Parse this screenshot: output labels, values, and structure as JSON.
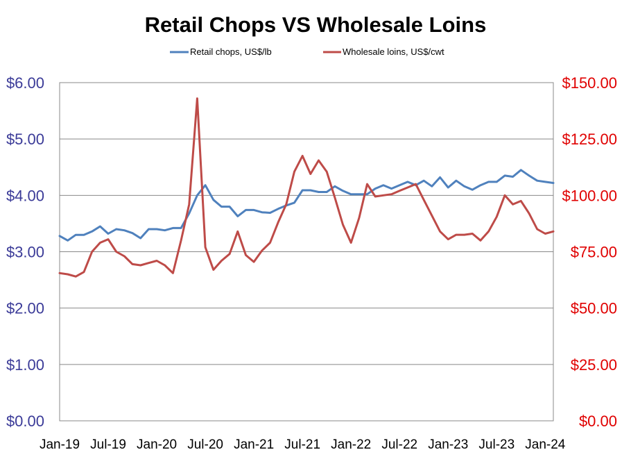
{
  "chart_data": {
    "type": "line",
    "title": "Retail Chops VS Wholesale Loins",
    "legend_position": "top-center",
    "grid": true,
    "x_tick_labels": [
      "Jan-19",
      "Jul-19",
      "Jan-20",
      "Jul-20",
      "Jan-21",
      "Jul-21",
      "Jan-22",
      "Jul-22",
      "Jan-23",
      "Jul-23",
      "Jan-24"
    ],
    "x": [
      "2019-01",
      "2019-02",
      "2019-03",
      "2019-04",
      "2019-05",
      "2019-06",
      "2019-07",
      "2019-08",
      "2019-09",
      "2019-10",
      "2019-11",
      "2019-12",
      "2020-01",
      "2020-02",
      "2020-03",
      "2020-04",
      "2020-05",
      "2020-06",
      "2020-07",
      "2020-08",
      "2020-09",
      "2020-10",
      "2020-11",
      "2020-12",
      "2021-01",
      "2021-02",
      "2021-03",
      "2021-04",
      "2021-05",
      "2021-06",
      "2021-07",
      "2021-08",
      "2021-09",
      "2021-10",
      "2021-11",
      "2021-12",
      "2022-01",
      "2022-02",
      "2022-03",
      "2022-04",
      "2022-05",
      "2022-06",
      "2022-07",
      "2022-08",
      "2022-09",
      "2022-10",
      "2022-11",
      "2022-12",
      "2023-01",
      "2023-02",
      "2023-03",
      "2023-04",
      "2023-05",
      "2023-06",
      "2023-07",
      "2023-08",
      "2023-09",
      "2023-10",
      "2023-11",
      "2023-12",
      "2024-01",
      "2024-02"
    ],
    "left_axis": {
      "ylim": [
        0,
        6
      ],
      "tick_labels": [
        "$0.00",
        "$1.00",
        "$2.00",
        "$3.00",
        "$4.00",
        "$5.00",
        "$6.00"
      ],
      "color": "#3b3b98"
    },
    "right_axis": {
      "ylim": [
        0,
        150
      ],
      "tick_labels": [
        "$0.00",
        "$25.00",
        "$50.00",
        "$75.00",
        "$100.00",
        "$125.00",
        "$150.00"
      ],
      "color": "#e00000"
    },
    "series": [
      {
        "name": "Retail chops, US$/lb",
        "axis": "left",
        "color": "#4f81bd",
        "values": [
          3.28,
          3.2,
          3.3,
          3.3,
          3.36,
          3.45,
          3.32,
          3.4,
          3.38,
          3.33,
          3.24,
          3.4,
          3.4,
          3.38,
          3.42,
          3.42,
          3.68,
          4.0,
          4.18,
          3.92,
          3.8,
          3.8,
          3.63,
          3.74,
          3.74,
          3.7,
          3.69,
          3.76,
          3.82,
          3.87,
          4.09,
          4.09,
          4.06,
          4.06,
          4.16,
          4.08,
          4.02,
          4.02,
          4.02,
          4.12,
          4.18,
          4.12,
          4.18,
          4.24,
          4.18,
          4.26,
          4.16,
          4.32,
          4.14,
          4.26,
          4.16,
          4.1,
          4.18,
          4.24,
          4.24,
          4.35,
          4.33,
          4.45,
          4.35,
          4.26,
          4.24,
          4.22
        ]
      },
      {
        "name": "Wholesale loins, US$/cwt",
        "axis": "right",
        "color": "#be4b48",
        "values": [
          65.5,
          65,
          64,
          66,
          75,
          79,
          80.5,
          75,
          73,
          69.5,
          69,
          70,
          71,
          69,
          65.5,
          80,
          96,
          143,
          77,
          67,
          71,
          74,
          84,
          73.5,
          70.5,
          75.5,
          79,
          88,
          96,
          110.5,
          117.5,
          109.5,
          115.5,
          110.5,
          99,
          87,
          79,
          90,
          105,
          99.5,
          100,
          100.5,
          102,
          103.5,
          105,
          98,
          91,
          84,
          80.5,
          82.5,
          82.5,
          83,
          80,
          84,
          90.5,
          100,
          96,
          97.5,
          92,
          85,
          83,
          84
        ]
      }
    ]
  }
}
